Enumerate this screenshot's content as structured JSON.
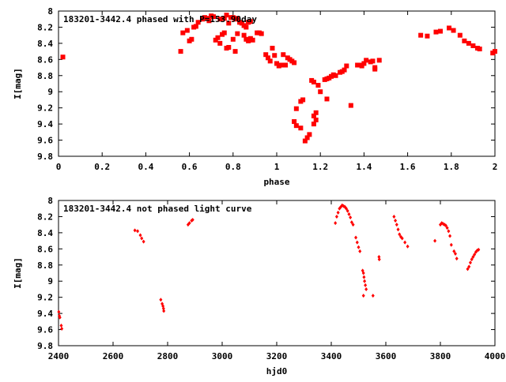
{
  "chart_data": [
    {
      "type": "scatter",
      "title": "183201-3442.4 phased with P=153.90day",
      "xlabel": "phase",
      "ylabel": "I[mag]",
      "xlim": [
        0,
        2
      ],
      "ylim": [
        9.8,
        8
      ],
      "y_inverted": true,
      "grid": false,
      "marker": "square",
      "color": "#ff0000",
      "xticks": [
        "0",
        "0.2",
        "0.4",
        "0.6",
        "0.8",
        "1",
        "1.2",
        "1.4",
        "1.6",
        "1.8",
        "2"
      ],
      "yticks": [
        "8",
        "8.2",
        "8.4",
        "8.6",
        "8.8",
        "9",
        "9.2",
        "9.4",
        "9.6",
        "9.8"
      ],
      "series": [
        {
          "points": [
            [
              0.02,
              8.57
            ],
            [
              0.56,
              8.5
            ],
            [
              0.57,
              8.27
            ],
            [
              0.59,
              8.24
            ],
            [
              0.6,
              8.37
            ],
            [
              0.61,
              8.35
            ],
            [
              0.62,
              8.2
            ],
            [
              0.63,
              8.19
            ],
            [
              0.64,
              8.14
            ],
            [
              0.66,
              8.1
            ],
            [
              0.67,
              8.08
            ],
            [
              0.68,
              8.09
            ],
            [
              0.69,
              8.12
            ],
            [
              0.7,
              8.06
            ],
            [
              0.71,
              8.07
            ],
            [
              0.72,
              8.36
            ],
            [
              0.73,
              8.33
            ],
            [
              0.74,
              8.4
            ],
            [
              0.75,
              8.29
            ],
            [
              0.76,
              8.27
            ],
            [
              0.77,
              8.46
            ],
            [
              0.78,
              8.45
            ],
            [
              0.74,
              8.1
            ],
            [
              0.76,
              8.09
            ],
            [
              0.77,
              8.05
            ],
            [
              0.78,
              8.15
            ],
            [
              0.79,
              8.08
            ],
            [
              0.8,
              8.08
            ],
            [
              0.81,
              8.1
            ],
            [
              0.82,
              8.09
            ],
            [
              0.83,
              8.14
            ],
            [
              0.84,
              8.15
            ],
            [
              0.85,
              8.18
            ],
            [
              0.86,
              8.2
            ],
            [
              0.87,
              8.14
            ],
            [
              0.88,
              8.13
            ],
            [
              0.8,
              8.35
            ],
            [
              0.81,
              8.5
            ],
            [
              0.82,
              8.28
            ],
            [
              0.85,
              8.3
            ],
            [
              0.86,
              8.35
            ],
            [
              0.87,
              8.37
            ],
            [
              0.88,
              8.34
            ],
            [
              0.89,
              8.36
            ],
            [
              0.91,
              8.27
            ],
            [
              0.92,
              8.27
            ],
            [
              0.93,
              8.28
            ],
            [
              0.95,
              8.54
            ],
            [
              0.96,
              8.58
            ],
            [
              0.97,
              8.62
            ],
            [
              0.98,
              8.46
            ],
            [
              0.99,
              8.55
            ],
            [
              1.0,
              8.65
            ],
            [
              1.01,
              8.68
            ],
            [
              1.02,
              8.67
            ],
            [
              1.03,
              8.54
            ],
            [
              1.04,
              8.67
            ],
            [
              1.05,
              8.58
            ],
            [
              1.06,
              8.6
            ],
            [
              1.07,
              8.62
            ],
            [
              1.08,
              8.64
            ],
            [
              1.08,
              9.37
            ],
            [
              1.09,
              9.42
            ],
            [
              1.09,
              9.21
            ],
            [
              1.11,
              9.45
            ],
            [
              1.11,
              9.12
            ],
            [
              1.12,
              9.1
            ],
            [
              1.13,
              9.61
            ],
            [
              1.14,
              9.57
            ],
            [
              1.15,
              9.53
            ],
            [
              1.16,
              8.86
            ],
            [
              1.17,
              8.88
            ],
            [
              1.17,
              9.4
            ],
            [
              1.17,
              9.3
            ],
            [
              1.18,
              9.35
            ],
            [
              1.18,
              9.26
            ],
            [
              1.19,
              8.92
            ],
            [
              1.2,
              9.0
            ],
            [
              1.22,
              8.85
            ],
            [
              1.23,
              8.84
            ],
            [
              1.23,
              9.09
            ],
            [
              1.24,
              8.83
            ],
            [
              1.25,
              8.81
            ],
            [
              1.26,
              8.79
            ],
            [
              1.27,
              8.8
            ],
            [
              1.29,
              8.76
            ],
            [
              1.3,
              8.75
            ],
            [
              1.31,
              8.73
            ],
            [
              1.32,
              8.68
            ],
            [
              1.34,
              9.17
            ],
            [
              1.37,
              8.67
            ],
            [
              1.38,
              8.67
            ],
            [
              1.39,
              8.68
            ],
            [
              1.4,
              8.65
            ],
            [
              1.41,
              8.61
            ],
            [
              1.43,
              8.63
            ],
            [
              1.44,
              8.62
            ],
            [
              1.45,
              8.7
            ],
            [
              1.45,
              8.72
            ],
            [
              1.47,
              8.61
            ],
            [
              1.66,
              8.3
            ],
            [
              1.69,
              8.31
            ],
            [
              1.73,
              8.26
            ],
            [
              1.75,
              8.25
            ],
            [
              1.79,
              8.21
            ],
            [
              1.81,
              8.24
            ],
            [
              1.84,
              8.3
            ],
            [
              1.86,
              8.37
            ],
            [
              1.88,
              8.4
            ],
            [
              1.9,
              8.43
            ],
            [
              1.92,
              8.46
            ],
            [
              1.93,
              8.47
            ],
            [
              1.99,
              8.52
            ],
            [
              2.0,
              8.5
            ]
          ]
        }
      ]
    },
    {
      "type": "scatter",
      "title": "183201-3442.4 not phased light curve",
      "xlabel": "hjd0",
      "ylabel": "I[mag]",
      "xlim": [
        2400,
        4000
      ],
      "ylim": [
        9.8,
        8
      ],
      "y_inverted": true,
      "grid": false,
      "marker": "diamond",
      "color": "#ff0000",
      "xticks": [
        "2400",
        "2600",
        "2800",
        "3000",
        "3200",
        "3400",
        "3600",
        "3800",
        "4000"
      ],
      "yticks": [
        "8",
        "8.2",
        "8.4",
        "8.6",
        "8.8",
        "9",
        "9.2",
        "9.4",
        "9.6",
        "9.8"
      ],
      "series": [
        {
          "points": [
            [
              2401,
              9.38
            ],
            [
              2403,
              9.43
            ],
            [
              2405,
              9.45
            ],
            [
              2410,
              9.55
            ],
            [
              2412,
              9.59
            ],
            [
              2680,
              8.37
            ],
            [
              2690,
              8.38
            ],
            [
              2700,
              8.43
            ],
            [
              2705,
              8.47
            ],
            [
              2712,
              8.51
            ],
            [
              2775,
              9.23
            ],
            [
              2780,
              9.28
            ],
            [
              2783,
              9.31
            ],
            [
              2785,
              9.34
            ],
            [
              2786,
              9.37
            ],
            [
              2875,
              8.3
            ],
            [
              2880,
              8.28
            ],
            [
              2888,
              8.25
            ],
            [
              2892,
              8.24
            ],
            [
              3415,
              8.28
            ],
            [
              3420,
              8.2
            ],
            [
              3425,
              8.15
            ],
            [
              3430,
              8.1
            ],
            [
              3435,
              8.08
            ],
            [
              3440,
              8.06
            ],
            [
              3445,
              8.07
            ],
            [
              3450,
              8.08
            ],
            [
              3455,
              8.1
            ],
            [
              3460,
              8.13
            ],
            [
              3465,
              8.17
            ],
            [
              3470,
              8.21
            ],
            [
              3475,
              8.27
            ],
            [
              3480,
              8.3
            ],
            [
              3490,
              8.46
            ],
            [
              3495,
              8.52
            ],
            [
              3500,
              8.58
            ],
            [
              3505,
              8.63
            ],
            [
              3515,
              8.87
            ],
            [
              3518,
              8.9
            ],
            [
              3520,
              8.95
            ],
            [
              3522,
              9.0
            ],
            [
              3525,
              9.05
            ],
            [
              3528,
              9.1
            ],
            [
              3518,
              9.18
            ],
            [
              3553,
              9.18
            ],
            [
              3575,
              8.7
            ],
            [
              3576,
              8.73
            ],
            [
              3630,
              8.2
            ],
            [
              3635,
              8.25
            ],
            [
              3640,
              8.3
            ],
            [
              3645,
              8.36
            ],
            [
              3650,
              8.42
            ],
            [
              3655,
              8.45
            ],
            [
              3660,
              8.47
            ],
            [
              3670,
              8.52
            ],
            [
              3680,
              8.57
            ],
            [
              3780,
              8.5
            ],
            [
              3800,
              8.3
            ],
            [
              3805,
              8.28
            ],
            [
              3810,
              8.29
            ],
            [
              3815,
              8.3
            ],
            [
              3820,
              8.31
            ],
            [
              3825,
              8.34
            ],
            [
              3830,
              8.38
            ],
            [
              3835,
              8.44
            ],
            [
              3840,
              8.55
            ],
            [
              3850,
              8.63
            ],
            [
              3855,
              8.66
            ],
            [
              3860,
              8.72
            ],
            [
              3900,
              8.85
            ],
            [
              3905,
              8.82
            ],
            [
              3910,
              8.77
            ],
            [
              3915,
              8.73
            ],
            [
              3920,
              8.7
            ],
            [
              3925,
              8.67
            ],
            [
              3930,
              8.64
            ],
            [
              3935,
              8.62
            ],
            [
              3940,
              8.61
            ]
          ]
        }
      ]
    }
  ]
}
